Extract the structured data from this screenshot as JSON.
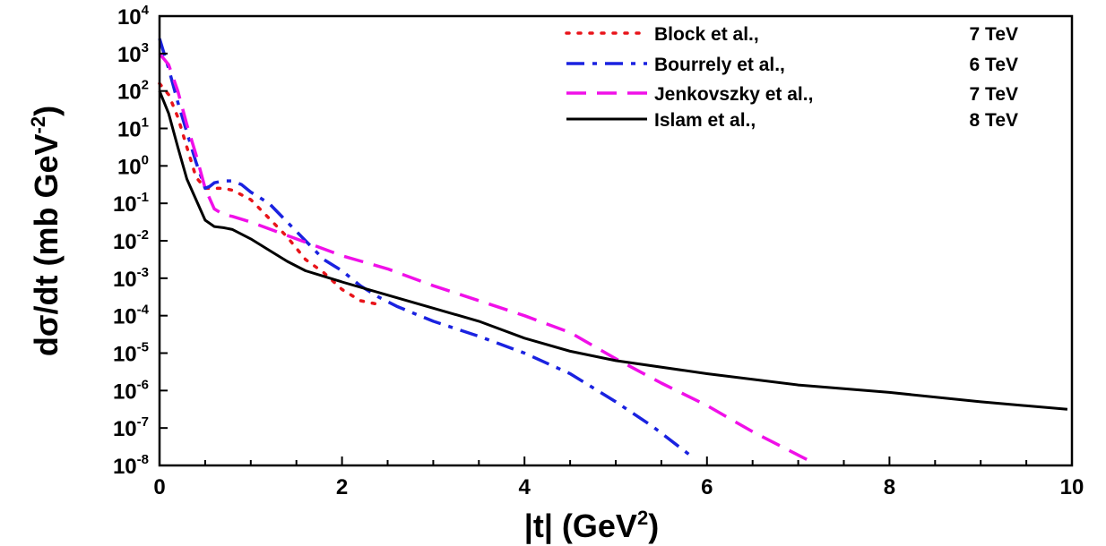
{
  "chart_data": {
    "type": "line",
    "title": "",
    "xlabel": {
      "base": "|t|  (GeV",
      "sup": "2",
      "close": ")"
    },
    "ylabel": {
      "base": "dσ/dt (mb GeV",
      "sup": "-2",
      "close": ")"
    },
    "xlim": [
      0,
      10
    ],
    "ylim_exponent": [
      -8,
      4
    ],
    "yscale": "log",
    "x_ticks": [
      "0",
      "2",
      "4",
      "6",
      "8",
      "10"
    ],
    "y_ticks": [
      {
        "base": "10",
        "exp": "4"
      },
      {
        "base": "10",
        "exp": "3"
      },
      {
        "base": "10",
        "exp": "2"
      },
      {
        "base": "10",
        "exp": "1"
      },
      {
        "base": "10",
        "exp": "0"
      },
      {
        "base": "10",
        "exp": "-1"
      },
      {
        "base": "10",
        "exp": "-2"
      },
      {
        "base": "10",
        "exp": "-3"
      },
      {
        "base": "10",
        "exp": "-4"
      },
      {
        "base": "10",
        "exp": "-5"
      },
      {
        "base": "10",
        "exp": "-6"
      },
      {
        "base": "10",
        "exp": "-7"
      },
      {
        "base": "10",
        "exp": "-8"
      }
    ],
    "grid": false,
    "legend_position": "top-right",
    "series": [
      {
        "name": "Block et al.,",
        "energy": "7 TeV",
        "color": "#e8141a",
        "style": "dotted",
        "x": [
          0.0,
          0.1,
          0.2,
          0.3,
          0.4,
          0.5,
          0.6,
          0.7,
          0.8,
          1.0,
          1.2,
          1.4,
          1.6,
          1.8,
          2.0,
          2.2,
          2.4
        ],
        "log10y": [
          2.2,
          1.9,
          1.3,
          0.5,
          -0.3,
          -0.6,
          -0.6,
          -0.6,
          -0.65,
          -0.9,
          -1.4,
          -1.9,
          -2.5,
          -2.85,
          -3.3,
          -3.6,
          -3.7
        ]
      },
      {
        "name": "Bourrely et al.,",
        "energy": "6 TeV",
        "color": "#1a22e0",
        "style": "dashdot",
        "x": [
          0.0,
          0.1,
          0.2,
          0.3,
          0.4,
          0.5,
          0.55,
          0.6,
          0.7,
          0.8,
          0.9,
          1.0,
          1.2,
          1.4,
          1.6,
          1.8,
          2.0,
          2.2,
          2.4,
          2.6,
          2.8,
          3.0,
          3.5,
          4.0,
          4.5,
          5.0,
          5.4,
          5.8
        ],
        "log10y": [
          3.4,
          2.6,
          1.7,
          0.9,
          0.1,
          -0.6,
          -0.55,
          -0.45,
          -0.4,
          -0.4,
          -0.5,
          -0.7,
          -1.0,
          -1.5,
          -2.0,
          -2.5,
          -2.8,
          -3.2,
          -3.5,
          -3.75,
          -3.95,
          -4.15,
          -4.55,
          -5.0,
          -5.55,
          -6.3,
          -6.95,
          -7.7
        ]
      },
      {
        "name": "Jenkovszky et al.,",
        "energy": "7 TeV",
        "color": "#f010e8",
        "style": "dashed",
        "x": [
          0.0,
          0.1,
          0.2,
          0.3,
          0.4,
          0.5,
          0.6,
          0.7,
          0.8,
          1.0,
          1.5,
          2.0,
          2.5,
          3.0,
          3.5,
          4.0,
          4.5,
          5.0,
          5.5,
          6.0,
          6.5,
          7.1
        ],
        "log10y": [
          3.0,
          2.7,
          2.0,
          1.1,
          0.3,
          -0.6,
          -1.15,
          -1.3,
          -1.35,
          -1.5,
          -1.95,
          -2.4,
          -2.75,
          -3.2,
          -3.6,
          -4.0,
          -4.45,
          -5.15,
          -5.8,
          -6.4,
          -7.1,
          -7.85
        ]
      },
      {
        "name": "Islam et al.,",
        "energy": "8 TeV",
        "color": "#000000",
        "style": "solid",
        "x": [
          0.0,
          0.1,
          0.2,
          0.3,
          0.4,
          0.5,
          0.6,
          0.7,
          0.8,
          1.0,
          1.2,
          1.4,
          1.6,
          1.8,
          2.0,
          2.5,
          3.0,
          3.5,
          4.0,
          4.5,
          5.0,
          6.0,
          7.0,
          8.0,
          9.0,
          9.95
        ],
        "log10y": [
          2.0,
          1.4,
          0.5,
          -0.35,
          -0.9,
          -1.45,
          -1.62,
          -1.65,
          -1.7,
          -1.95,
          -2.25,
          -2.55,
          -2.8,
          -2.95,
          -3.1,
          -3.45,
          -3.8,
          -4.15,
          -4.6,
          -4.95,
          -5.2,
          -5.55,
          -5.85,
          -6.05,
          -6.3,
          -6.5
        ]
      }
    ]
  }
}
